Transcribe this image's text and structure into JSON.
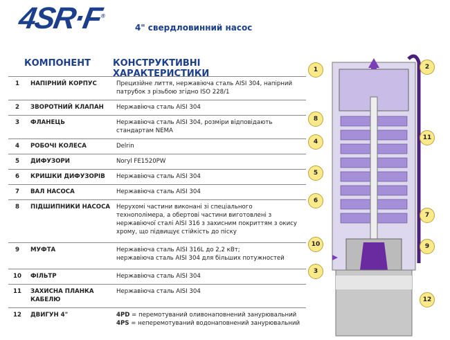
{
  "logo": "4SR·F",
  "subtitle": "4\" свердловинний насос",
  "headers": {
    "component": "КОМПОНЕНТ",
    "specs": "КОНСТРУКТИВНІ ХАРАКТЕРИСТИКИ"
  },
  "rows": [
    {
      "num": "1",
      "name": "НАПІРНИЙ КОРПУС",
      "desc": [
        "Прецизійне лиття, нержавіюча сталь AISI 304, напірний",
        "патрубок з різьбою згідно ISO 228/1"
      ]
    },
    {
      "num": "2",
      "name": "ЗВОРОТНИЙ КЛАПАН",
      "desc": [
        "Нержавіюча сталь AISI 304"
      ]
    },
    {
      "num": "3",
      "name": "ФЛАНЕЦЬ",
      "desc": [
        "Нержавіюча сталь AISI 304, розміри відповідають",
        "стандартам NEMA"
      ]
    },
    {
      "num": "4",
      "name": "РОБОЧІ КОЛЕСА",
      "desc": [
        "Delrin"
      ]
    },
    {
      "num": "5",
      "name": "ДИФУЗОРИ",
      "desc": [
        "Noryl FE1520PW"
      ]
    },
    {
      "num": "6",
      "name": "КРИШКИ ДИФУЗОРІВ",
      "desc": [
        "Нержавіюча сталь AISI 304"
      ]
    },
    {
      "num": "7",
      "name": "ВАЛ НАСОСА",
      "desc": [
        "Нержавіюча сталь AISI 304"
      ]
    },
    {
      "num": "8",
      "name": "ПІДШИПНИКИ НАСОСА",
      "desc": [
        "Нерухомі частини виконані зі спеціального",
        "технополімера, а обертові частини виготовлені з",
        "нержавіючої сталі AISI 316 з захисним покриттям з окису",
        "хрому, що підвищує стійкість до піску"
      ]
    },
    {
      "num": "9",
      "name": "МУФТА",
      "desc": [
        "Нержавіюча сталь AISI 316L до 2,2 кВт;",
        "нержавіюча сталь AISI 304 для більших потужностей"
      ]
    },
    {
      "num": "10",
      "name": "ФІЛЬТР",
      "desc": [
        "Нержавіюча сталь AISI 304"
      ]
    },
    {
      "num": "11",
      "name": "ЗАХИСНА ПЛАНКА КАБЕЛЮ",
      "desc": [
        "Нержавіюча сталь AISI 304"
      ]
    },
    {
      "num": "12",
      "name": "ДВИГУН 4\"",
      "desc": [
        "4PD = перемотуваний оливонаповнений занурювальний",
        "4PS = неперемотуваний водонаповнений занурювальний"
      ]
    }
  ],
  "callouts": [
    "1",
    "2",
    "8",
    "11",
    "4",
    "5",
    "6",
    "7",
    "10",
    "9",
    "3",
    "12"
  ],
  "colors": {
    "brand": "#1c3f8c",
    "callout": "#fbe98a",
    "impeller": "#a58fd8"
  }
}
